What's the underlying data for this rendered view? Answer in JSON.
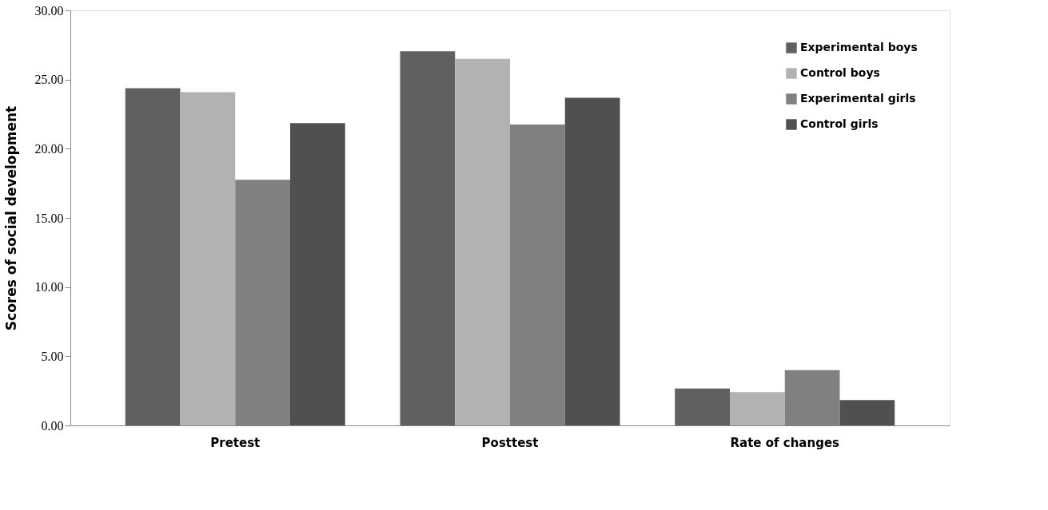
{
  "chart_data": {
    "type": "bar",
    "ylabel": "Scores of social development",
    "categories": [
      "Pretest",
      "Posttest",
      "Rate of changes"
    ],
    "series": [
      {
        "name": "Experimental boys",
        "color": "#606060",
        "values": [
          24.37,
          27.04,
          2.67
        ]
      },
      {
        "name": "Control boys",
        "color": "#b2b2b2",
        "values": [
          24.08,
          26.49,
          2.41
        ]
      },
      {
        "name": "Experimental girls",
        "color": "#808080",
        "values": [
          17.75,
          21.75,
          4.0
        ]
      },
      {
        "name": "Control girls",
        "color": "#505050",
        "values": [
          21.85,
          23.68,
          1.83
        ]
      }
    ],
    "ylim": [
      0,
      30
    ],
    "yticks": [
      {
        "value": 0,
        "label": "0.00"
      },
      {
        "value": 5,
        "label": "5.00"
      },
      {
        "value": 10,
        "label": "10.00"
      },
      {
        "value": 15,
        "label": "15.00"
      },
      {
        "value": 20,
        "label": "20.00"
      },
      {
        "value": 25,
        "label": "25.00"
      },
      {
        "value": 30,
        "label": "30.00"
      }
    ],
    "grid": false,
    "legend": "top right"
  }
}
